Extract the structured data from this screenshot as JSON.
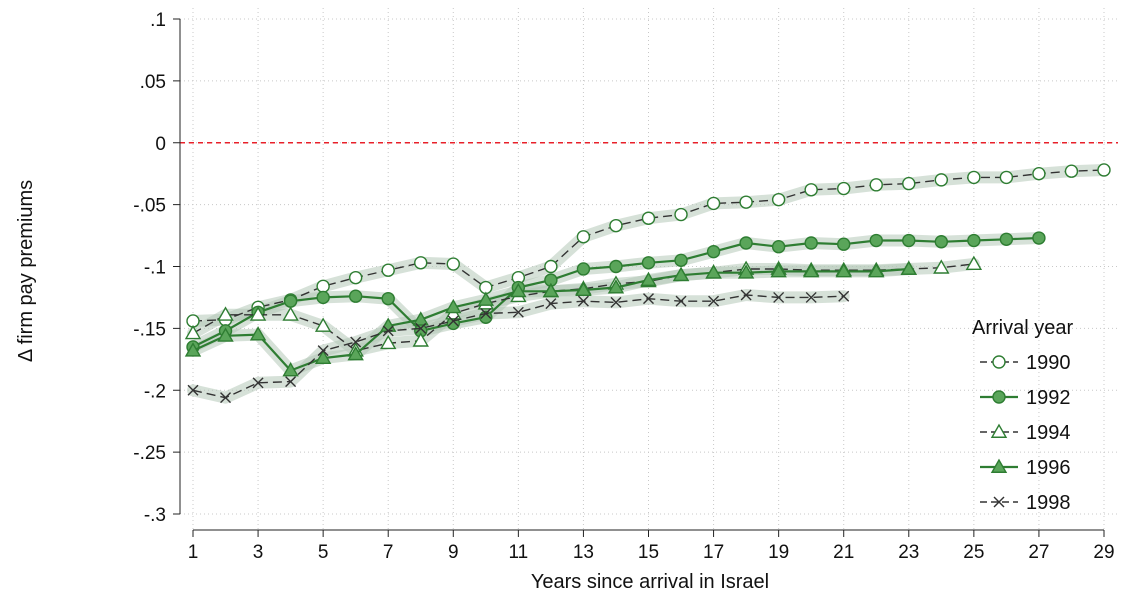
{
  "chart_data": {
    "type": "line",
    "title": "",
    "xlabel": "Years since arrival in Israel",
    "ylabel": "Δ firm pay premiums",
    "xlim": [
      1,
      29
    ],
    "ylim": [
      -0.3,
      0.1
    ],
    "x_ticks": [
      1,
      3,
      5,
      7,
      9,
      11,
      13,
      15,
      17,
      19,
      21,
      23,
      25,
      27,
      29
    ],
    "x_tick_labels": [
      "1",
      "3",
      "5",
      "7",
      "9",
      "11",
      "13",
      "15",
      "17",
      "19",
      "21",
      "23",
      "25",
      "27",
      "29"
    ],
    "y_ticks": [
      0.1,
      0.05,
      0,
      -0.05,
      -0.1,
      -0.15,
      -0.2,
      -0.25,
      -0.3
    ],
    "y_tick_labels": [
      ".1",
      ".05",
      "0",
      "-.05",
      "-.1",
      "-.15",
      "-.2",
      "-.25",
      "-.3"
    ],
    "grid": true,
    "reference_line": {
      "y": 0,
      "color": "#e8202a",
      "style": "dashed"
    },
    "legend": {
      "title": "Arrival year",
      "position": "right"
    },
    "series": [
      {
        "name": "1990",
        "marker": "circle-hollow",
        "line": "dashed",
        "x": [
          1,
          2,
          3,
          4,
          5,
          6,
          7,
          8,
          9,
          10,
          11,
          12,
          13,
          14,
          15,
          16,
          17,
          18,
          19,
          20,
          21,
          22,
          23,
          24,
          25,
          26,
          27,
          28,
          29
        ],
        "values": [
          -0.144,
          -0.143,
          -0.133,
          -0.127,
          -0.116,
          -0.109,
          -0.103,
          -0.097,
          -0.098,
          -0.117,
          -0.109,
          -0.1,
          -0.076,
          -0.067,
          -0.061,
          -0.058,
          -0.049,
          -0.048,
          -0.046,
          -0.038,
          -0.037,
          -0.034,
          -0.033,
          -0.03,
          -0.028,
          -0.028,
          -0.025,
          -0.023,
          -0.022
        ]
      },
      {
        "name": "1992",
        "marker": "circle-filled",
        "line": "solid",
        "x": [
          1,
          2,
          3,
          4,
          5,
          6,
          7,
          8,
          9,
          10,
          11,
          12,
          13,
          14,
          15,
          16,
          17,
          18,
          19,
          20,
          21,
          22,
          23,
          24,
          25,
          26,
          27
        ],
        "values": [
          -0.165,
          -0.152,
          -0.137,
          -0.128,
          -0.125,
          -0.124,
          -0.126,
          -0.152,
          -0.146,
          -0.141,
          -0.117,
          -0.111,
          -0.102,
          -0.1,
          -0.097,
          -0.095,
          -0.088,
          -0.081,
          -0.084,
          -0.081,
          -0.082,
          -0.079,
          -0.079,
          -0.08,
          -0.079,
          -0.078,
          -0.077
        ]
      },
      {
        "name": "1994",
        "marker": "triangle-hollow",
        "line": "dashed",
        "x": [
          1,
          2,
          3,
          4,
          5,
          6,
          7,
          8,
          9,
          10,
          11,
          12,
          13,
          14,
          15,
          16,
          17,
          18,
          19,
          20,
          21,
          22,
          23,
          24,
          25
        ],
        "values": [
          -0.154,
          -0.139,
          -0.139,
          -0.139,
          -0.148,
          -0.168,
          -0.162,
          -0.16,
          -0.138,
          -0.13,
          -0.124,
          -0.12,
          -0.118,
          -0.114,
          -0.112,
          -0.107,
          -0.105,
          -0.102,
          -0.102,
          -0.103,
          -0.103,
          -0.103,
          -0.102,
          -0.101,
          -0.098
        ]
      },
      {
        "name": "1996",
        "marker": "triangle-filled",
        "line": "solid",
        "x": [
          1,
          2,
          3,
          4,
          5,
          6,
          7,
          8,
          9,
          10,
          11,
          12,
          13,
          14,
          15,
          16,
          17,
          18,
          19,
          20,
          21,
          22,
          23
        ],
        "values": [
          -0.168,
          -0.156,
          -0.155,
          -0.184,
          -0.174,
          -0.171,
          -0.148,
          -0.143,
          -0.133,
          -0.127,
          -0.12,
          -0.12,
          -0.119,
          -0.117,
          -0.111,
          -0.107,
          -0.105,
          -0.105,
          -0.104,
          -0.104,
          -0.104,
          -0.104,
          -0.102
        ]
      },
      {
        "name": "1998",
        "marker": "x",
        "line": "dashed",
        "x": [
          1,
          2,
          3,
          4,
          5,
          6,
          7,
          8,
          9,
          10,
          11,
          12,
          13,
          14,
          15,
          16,
          17,
          18,
          19,
          20,
          21
        ],
        "values": [
          -0.2,
          -0.206,
          -0.194,
          -0.193,
          -0.168,
          -0.161,
          -0.152,
          -0.15,
          -0.144,
          -0.138,
          -0.137,
          -0.13,
          -0.128,
          -0.129,
          -0.126,
          -0.128,
          -0.128,
          -0.123,
          -0.125,
          -0.125,
          -0.124
        ]
      }
    ]
  },
  "colors": {
    "series_green": "#2e7d32",
    "marker_fill": "#5aa55a",
    "dark_line": "#333333",
    "ci_band": "#b4c8b8",
    "grid": "#c8c8c8",
    "zero_line": "#e8202a"
  }
}
